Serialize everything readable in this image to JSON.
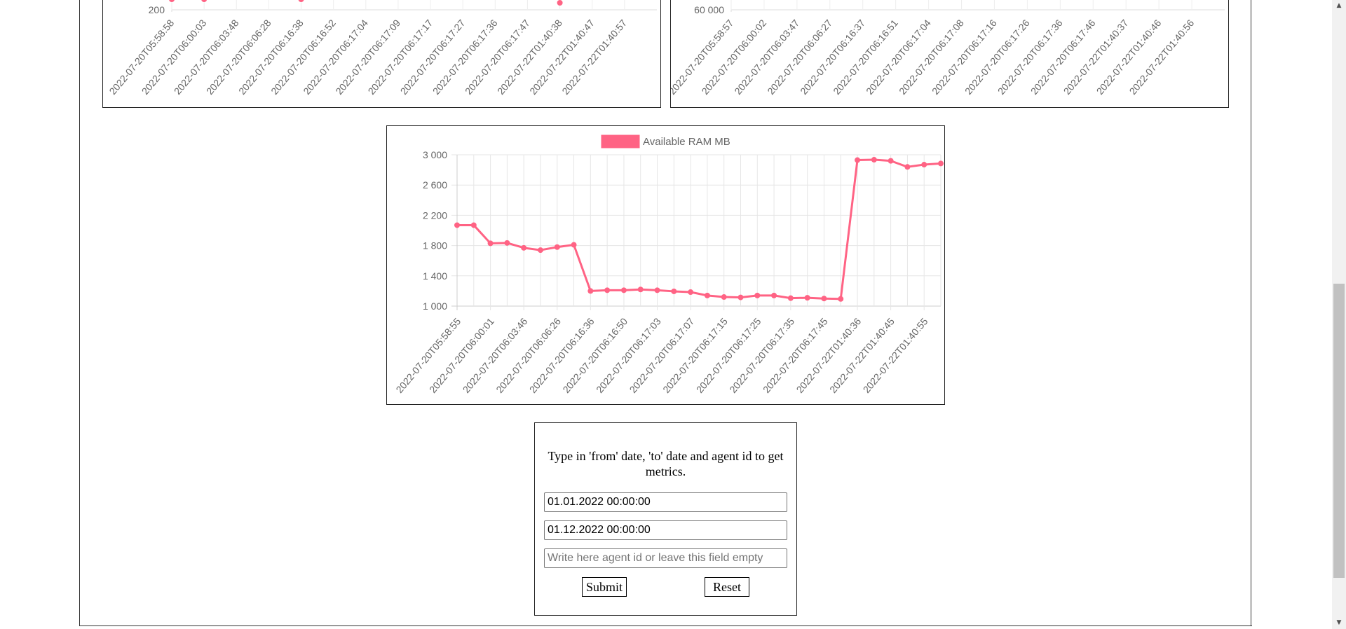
{
  "charts": {
    "top_left": {
      "ytick": "200",
      "labels": [
        "2022-07-20T05:58:58",
        "2022-07-20T06:00:03",
        "2022-07-20T06:03:48",
        "2022-07-20T06:06:28",
        "2022-07-20T06:16:38",
        "2022-07-20T06:16:52",
        "2022-07-20T06:17:04",
        "2022-07-20T06:17:09",
        "2022-07-20T06:17:17",
        "2022-07-20T06:17:27",
        "2022-07-20T06:17:36",
        "2022-07-20T06:17:47",
        "2022-07-22T01:40:38",
        "2022-07-22T01:40:47",
        "2022-07-22T01:40:57"
      ]
    },
    "top_right": {
      "ytick": "60 000",
      "labels": [
        "2022-07-20T05:58:57",
        "2022-07-20T06:00:02",
        "2022-07-20T06:03:47",
        "2022-07-20T06:06:27",
        "2022-07-20T06:16:37",
        "2022-07-20T06:16:51",
        "2022-07-20T06:17:04",
        "2022-07-20T06:17:08",
        "2022-07-20T06:17:16",
        "2022-07-20T06:17:26",
        "2022-07-20T06:17:36",
        "2022-07-20T06:17:46",
        "2022-07-22T01:40:37",
        "2022-07-22T01:40:46",
        "2022-07-22T01:40:56"
      ]
    }
  },
  "chart_data": {
    "type": "line",
    "legend": "Available RAM MB",
    "color": "#ff6384",
    "ylim": [
      1000,
      3000
    ],
    "yticks": [
      "1 000",
      "1 400",
      "1 800",
      "2 200",
      "2 600",
      "3 000"
    ],
    "x_labels": [
      "2022-07-20T05:58:55",
      "2022-07-20T06:00:01",
      "2022-07-20T06:03:46",
      "2022-07-20T06:06:26",
      "2022-07-20T06:16:36",
      "2022-07-20T06:16:50",
      "2022-07-20T06:17:03",
      "2022-07-20T06:17:07",
      "2022-07-20T06:17:15",
      "2022-07-20T06:17:25",
      "2022-07-20T06:17:35",
      "2022-07-20T06:17:45",
      "2022-07-22T01:40:36",
      "2022-07-22T01:40:45",
      "2022-07-22T01:40:55"
    ],
    "values": [
      2070,
      2070,
      1830,
      1835,
      1770,
      1740,
      1780,
      1810,
      1200,
      1210,
      1210,
      1220,
      1210,
      1195,
      1185,
      1140,
      1120,
      1115,
      1140,
      1140,
      1105,
      1110,
      1100,
      1095,
      2930,
      2935,
      2920,
      2840,
      2870,
      2885
    ]
  },
  "form": {
    "instruction": "Type in 'from' date, 'to' date and agent id to get metrics.",
    "from_value": "01.01.2022 00:00:00",
    "to_value": "01.12.2022 00:00:00",
    "agent_placeholder": "Write here agent id or leave this field empty",
    "submit_label": "Submit",
    "reset_label": "Reset"
  },
  "scrollbar": {
    "up_icon": "scroll-up-arrow-icon",
    "down_icon": "scroll-down-arrow-icon"
  }
}
